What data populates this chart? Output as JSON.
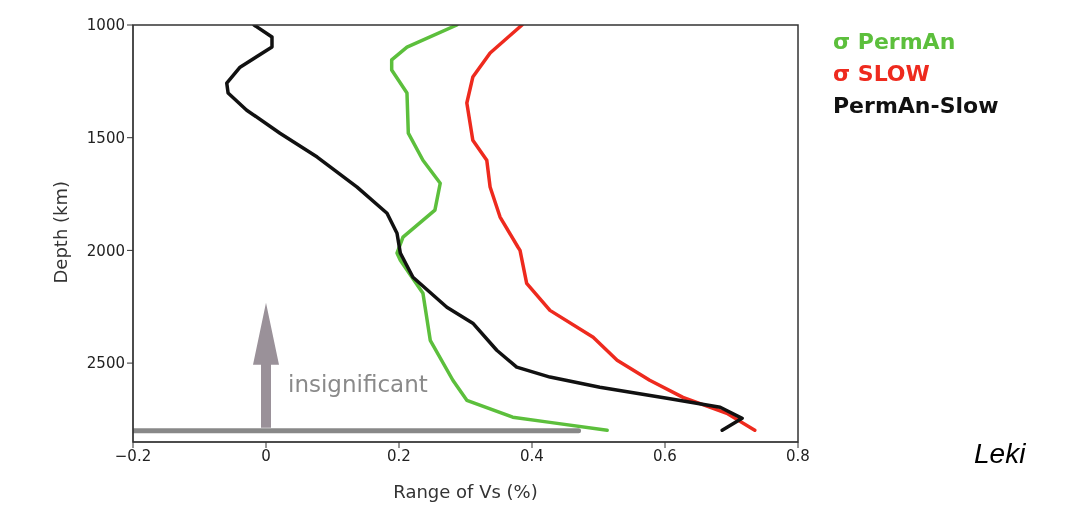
{
  "chart_data": {
    "type": "line",
    "xlabel": "Range of Vs (%)",
    "ylabel": "Depth (km)",
    "xlim": [
      -0.2,
      0.8
    ],
    "xticks": [
      {
        "value": -0.2,
        "label": "−0.2"
      },
      0,
      0.2,
      0.4,
      0.6,
      0.8
    ],
    "ylim": [
      2850,
      1000
    ],
    "yticks": [
      1000,
      1500,
      2000,
      2500
    ],
    "legend": "top right",
    "line_style": "solid",
    "marker": "none",
    "series": [
      {
        "name": "σ PermAn",
        "color": "#5cbf3c",
        "x": [
          0.287,
          0.212,
          0.189,
          0.189,
          0.212,
          0.214,
          0.236,
          0.262,
          0.254,
          0.206,
          0.197,
          0.202,
          0.236,
          0.247,
          0.281,
          0.302,
          0.371,
          0.427,
          0.513
        ],
        "values": [
          1000,
          1098,
          1155,
          1200,
          1302,
          1480,
          1600,
          1702,
          1821,
          1941,
          2012,
          2044,
          2190,
          2399,
          2576,
          2665,
          2740,
          2763,
          2798
        ]
      },
      {
        "name": "σ SLOW",
        "color": "#ee2a1e",
        "x": [
          0.385,
          0.337,
          0.311,
          0.302,
          0.311,
          0.332,
          0.337,
          0.352,
          0.379,
          0.382,
          0.392,
          0.427,
          0.492,
          0.528,
          0.577,
          0.627,
          0.693,
          0.735
        ],
        "values": [
          1000,
          1124,
          1231,
          1346,
          1511,
          1600,
          1719,
          1852,
          1986,
          2000,
          2146,
          2266,
          2385,
          2487,
          2576,
          2652,
          2723,
          2798
        ]
      },
      {
        "name": "PermAn-Slow",
        "color": "#111111",
        "x": [
          -0.018,
          0.009,
          0.009,
          -0.039,
          -0.059,
          -0.057,
          -0.029,
          0.021,
          0.077,
          0.137,
          0.182,
          0.197,
          0.202,
          0.221,
          0.272,
          0.311,
          0.347,
          0.377,
          0.427,
          0.502,
          0.603,
          0.683,
          0.716,
          0.686
        ],
        "values": [
          1000,
          1053,
          1098,
          1187,
          1258,
          1302,
          1378,
          1480,
          1586,
          1719,
          1835,
          1924,
          2012,
          2119,
          2252,
          2323,
          2443,
          2518,
          2562,
          2607,
          2656,
          2696,
          2745,
          2798
        ]
      },
      {
        "color": "#888888",
        "x": [
          -0.2,
          0.47
        ],
        "values": [
          2800,
          2800
        ]
      }
    ],
    "annotations": [
      "insignificant",
      "Leki"
    ]
  }
}
